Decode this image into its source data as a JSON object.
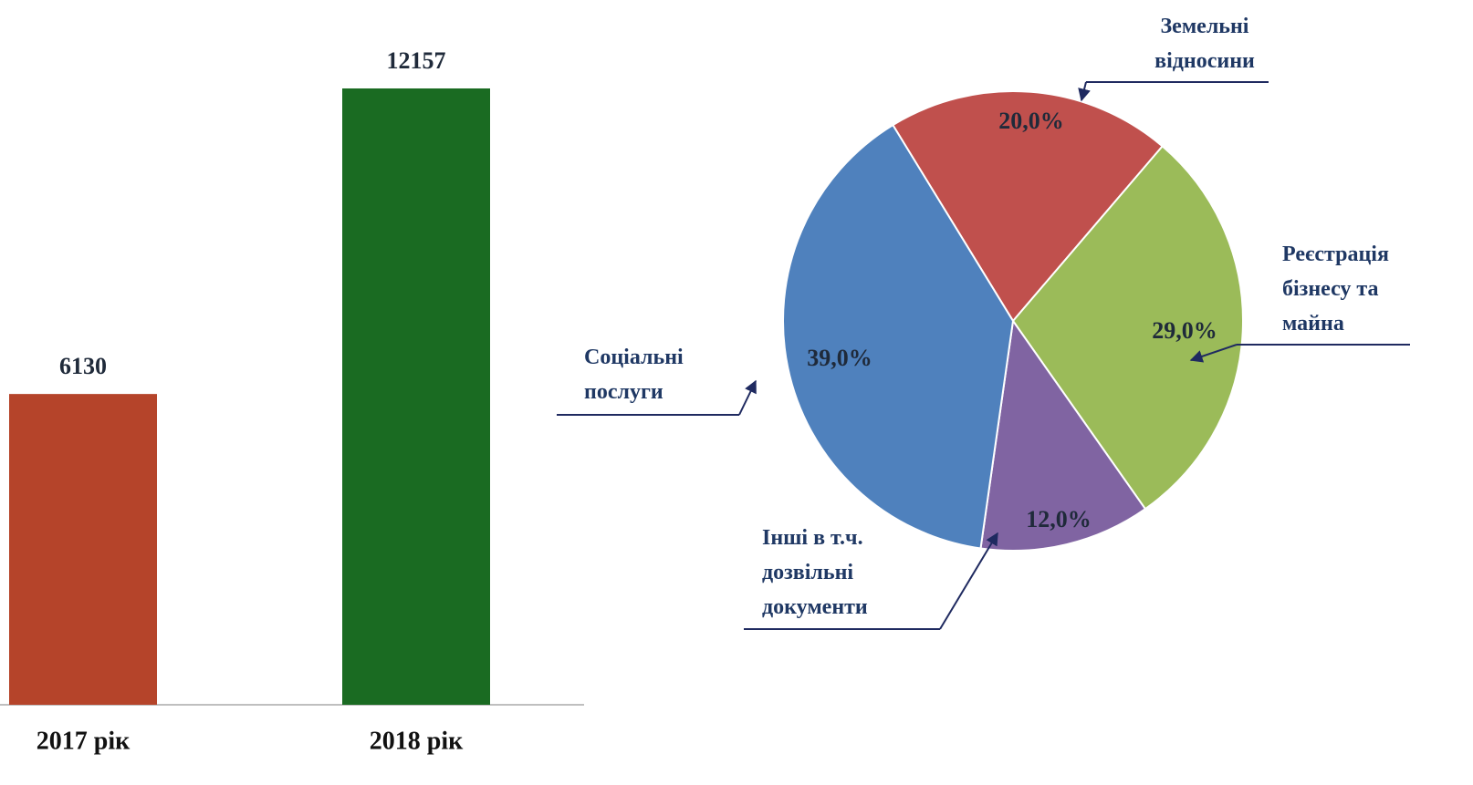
{
  "chart_data": [
    {
      "type": "bar",
      "categories": [
        "2017 рік",
        "2018 рік"
      ],
      "values": [
        6130,
        12157
      ],
      "colors": [
        "#b5442a",
        "#1a6b22"
      ]
    },
    {
      "type": "pie",
      "categories": [
        "Земельні відносини",
        "Реєстрація бізнесу та майна",
        "Інші в т.ч. дозвільні документи",
        "Соціальні послуги"
      ],
      "values": [
        20,
        29,
        12,
        39
      ],
      "value_labels": [
        "20,0%",
        "29,0%",
        "12,0%",
        "39,0%"
      ],
      "colors": [
        "#c0504d",
        "#9bbb59",
        "#8064a2",
        "#4f81bd"
      ]
    }
  ]
}
